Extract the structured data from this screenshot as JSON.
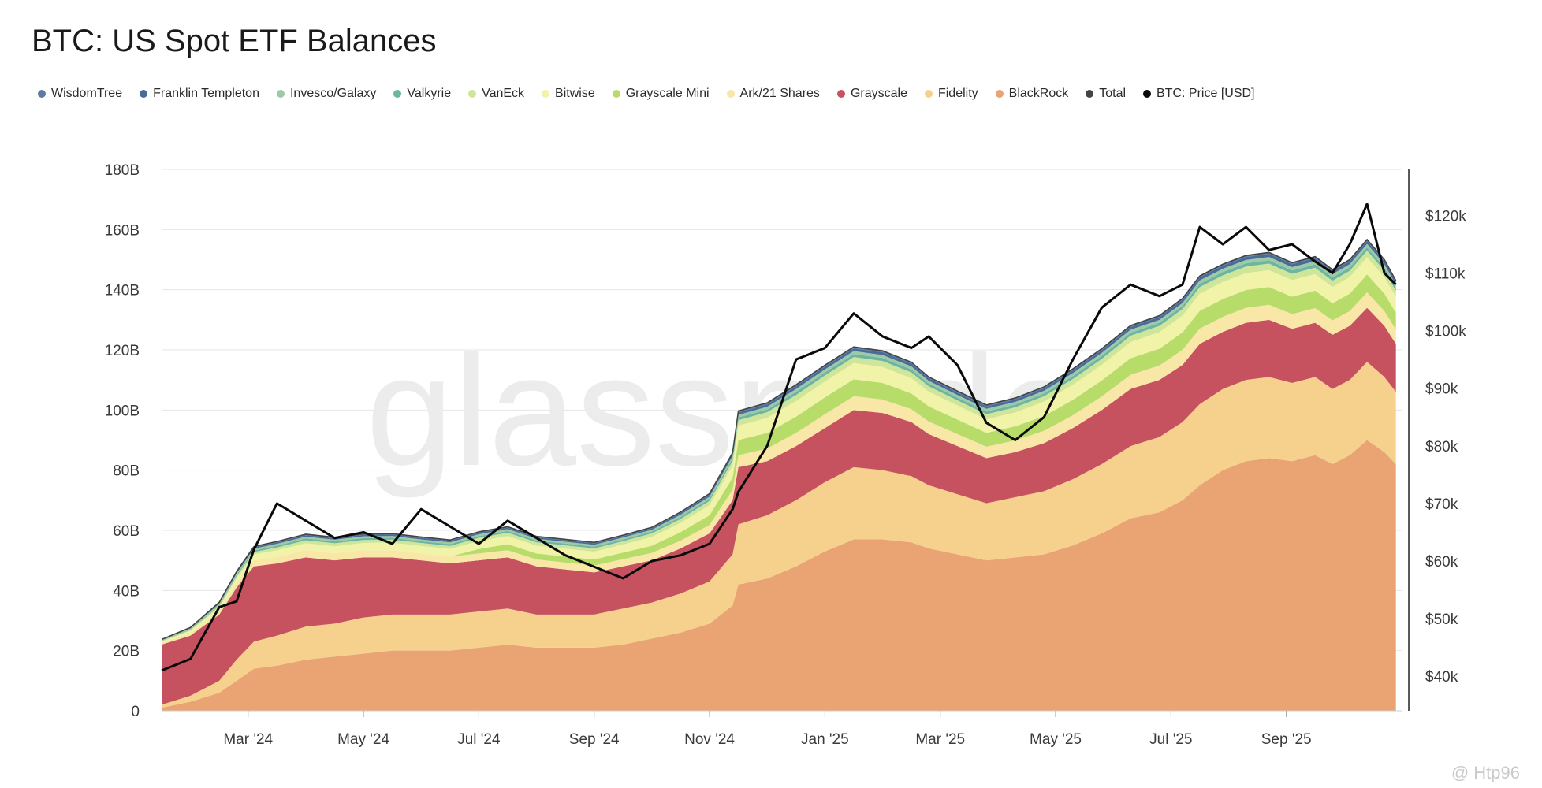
{
  "title": "BTC: US Spot ETF Balances",
  "legend": [
    {
      "label": "WisdomTree",
      "color": "#5b7aa0"
    },
    {
      "label": "Franklin Templeton",
      "color": "#4a6a98"
    },
    {
      "label": "Invesco/Galaxy",
      "color": "#9ccaa6"
    },
    {
      "label": "Valkyrie",
      "color": "#6bb5a2"
    },
    {
      "label": "VanEck",
      "color": "#cfe69a"
    },
    {
      "label": "Bitwise",
      "color": "#f0f3a8"
    },
    {
      "label": "Grayscale Mini",
      "color": "#b7dc6a"
    },
    {
      "label": "Ark/21 Shares",
      "color": "#f8e7a7"
    },
    {
      "label": "Grayscale",
      "color": "#c6525f"
    },
    {
      "label": "Fidelity",
      "color": "#f6d18e"
    },
    {
      "label": "BlackRock",
      "color": "#eaa474"
    },
    {
      "label": "Total",
      "color": "#444444"
    },
    {
      "label": "BTC: Price [USD]",
      "color": "#0a0a0a"
    }
  ],
  "watermark": "glassnode",
  "credit": "@ Htp96",
  "chart_data": {
    "type": "area",
    "stacked": true,
    "title": "BTC: US Spot ETF Balances",
    "y_left": {
      "ticks": [
        "0",
        "20B",
        "40B",
        "60B",
        "80B",
        "100B",
        "120B",
        "140B",
        "160B",
        "180B"
      ],
      "range": [
        0,
        180
      ]
    },
    "y_right": {
      "ticks": [
        "$40k",
        "$50k",
        "$60k",
        "$70k",
        "$80k",
        "$90k",
        "$100k",
        "$110k",
        "$120k"
      ],
      "range": [
        34,
        128
      ]
    },
    "x_ticks": [
      "Mar '24",
      "May '24",
      "Jul '24",
      "Sep '24",
      "Nov '24",
      "Jan '25",
      "Mar '25",
      "May '25",
      "Jul '25",
      "Sep '25"
    ],
    "x_tick_month_index": [
      1.5,
      3.5,
      5.5,
      7.5,
      9.5,
      11.5,
      13.5,
      15.5,
      17.5,
      19.5
    ],
    "x_month_range": [
      0,
      21.5
    ],
    "x": [
      0,
      0.5,
      1,
      1.3,
      1.6,
      2,
      2.5,
      3,
      3.5,
      4,
      4.5,
      5,
      5.5,
      6,
      6.5,
      7,
      7.5,
      8,
      8.5,
      9,
      9.5,
      9.9,
      10,
      10.5,
      11,
      11.5,
      12,
      12.5,
      13,
      13.3,
      13.8,
      14.3,
      14.8,
      15.3,
      15.8,
      16.3,
      16.8,
      17.3,
      17.7,
      18,
      18.4,
      18.8,
      19.2,
      19.6,
      20,
      20.3,
      20.6,
      20.9,
      21.2,
      21.4
    ],
    "series": [
      {
        "name": "BlackRock",
        "color": "#eaa474",
        "values": [
          1,
          3,
          6,
          10,
          14,
          15,
          17,
          18,
          19,
          20,
          20,
          20,
          21,
          22,
          21,
          21,
          21,
          22,
          24,
          26,
          29,
          35,
          42,
          44,
          48,
          53,
          57,
          57,
          56,
          54,
          52,
          50,
          51,
          52,
          55,
          59,
          64,
          66,
          70,
          75,
          80,
          83,
          84,
          83,
          85,
          82,
          85,
          90,
          86,
          82
        ]
      },
      {
        "name": "Fidelity",
        "color": "#f6d18e",
        "values": [
          1,
          2,
          4,
          7,
          9,
          10,
          11,
          11,
          12,
          12,
          12,
          12,
          12,
          12,
          11,
          11,
          11,
          12,
          12,
          13,
          14,
          17,
          20,
          21,
          22,
          23,
          24,
          23,
          22,
          21,
          20,
          19,
          20,
          21,
          22,
          23,
          24,
          25,
          26,
          27,
          27,
          27,
          27,
          26,
          26,
          25,
          25,
          26,
          25,
          24
        ]
      },
      {
        "name": "Grayscale",
        "color": "#c6525f",
        "values": [
          20,
          20,
          22,
          24,
          25,
          24,
          23,
          21,
          20,
          19,
          18,
          17,
          17,
          17,
          16,
          15,
          14,
          14,
          14,
          15,
          16,
          18,
          19,
          18,
          18,
          18,
          19,
          19,
          18,
          17,
          16,
          15,
          15,
          16,
          17,
          18,
          19,
          19,
          19,
          20,
          19,
          19,
          19,
          18,
          18,
          18,
          18,
          18,
          17,
          16
        ]
      },
      {
        "name": "Ark/21 Shares",
        "color": "#f8e7a7",
        "values": [
          0.5,
          0.8,
          1.2,
          1.5,
          2,
          2.2,
          2.4,
          2.4,
          2.4,
          2.4,
          2.3,
          2.3,
          2.3,
          2.4,
          2.3,
          2.3,
          2.3,
          2.4,
          2.5,
          2.6,
          2.8,
          3.5,
          4,
          4.2,
          4.4,
          4.6,
          4.6,
          4.5,
          4.3,
          4.2,
          4,
          3.8,
          3.9,
          4.1,
          4.3,
          4.5,
          4.7,
          4.8,
          5,
          5.1,
          5,
          5,
          5,
          4.9,
          4.9,
          4.8,
          4.9,
          5.1,
          4.9,
          4.7
        ]
      },
      {
        "name": "Grayscale Mini",
        "color": "#b7dc6a",
        "values": [
          0,
          0,
          0,
          0,
          0,
          0,
          0,
          0,
          0,
          0,
          0,
          0,
          1.5,
          2,
          2,
          2,
          2,
          2.2,
          2.4,
          2.8,
          3.2,
          4,
          5,
          5.2,
          5.4,
          5.6,
          5.6,
          5.5,
          5.2,
          5,
          4.8,
          4.6,
          4.7,
          4.9,
          5.1,
          5.3,
          5.5,
          5.6,
          5.8,
          5.9,
          5.9,
          5.9,
          5.9,
          5.8,
          5.8,
          5.7,
          5.8,
          6,
          5.8,
          5.6
        ]
      },
      {
        "name": "Bitwise",
        "color": "#f0f3a8",
        "values": [
          0.5,
          0.8,
          1.2,
          1.6,
          2,
          2.2,
          2.3,
          2.3,
          2.4,
          2.5,
          2.5,
          2.5,
          2.6,
          2.7,
          2.6,
          2.6,
          2.6,
          2.7,
          2.9,
          3.1,
          3.4,
          4,
          4.8,
          5,
          5.2,
          5.3,
          5.4,
          5.3,
          5.1,
          4.9,
          4.7,
          4.5,
          4.6,
          4.8,
          5,
          5.2,
          5.4,
          5.5,
          5.6,
          5.7,
          5.7,
          5.6,
          5.6,
          5.5,
          5.5,
          5.4,
          5.5,
          5.7,
          5.5,
          5.3
        ]
      },
      {
        "name": "VanEck",
        "color": "#cfe69a",
        "values": [
          0.2,
          0.3,
          0.5,
          0.7,
          0.8,
          0.9,
          1,
          1,
          1,
          1,
          1,
          1,
          1.1,
          1.1,
          1.1,
          1.1,
          1.1,
          1.1,
          1.2,
          1.3,
          1.4,
          1.6,
          1.8,
          1.9,
          2,
          2,
          2,
          2,
          1.9,
          1.8,
          1.7,
          1.7,
          1.7,
          1.8,
          1.9,
          2,
          2.1,
          2.1,
          2.2,
          2.2,
          2.2,
          2.2,
          2.2,
          2.1,
          2.1,
          2.1,
          2.1,
          2.2,
          2.1,
          2
        ]
      },
      {
        "name": "Valkyrie",
        "color": "#6bb5a2",
        "values": [
          0.1,
          0.2,
          0.3,
          0.4,
          0.5,
          0.6,
          0.6,
          0.6,
          0.6,
          0.6,
          0.6,
          0.6,
          0.6,
          0.6,
          0.6,
          0.6,
          0.6,
          0.6,
          0.6,
          0.7,
          0.7,
          0.8,
          0.9,
          0.9,
          1,
          1,
          1,
          1,
          1,
          0.9,
          0.9,
          0.9,
          0.9,
          0.9,
          1,
          1,
          1,
          1,
          1,
          1.1,
          1.1,
          1.1,
          1.1,
          1.1,
          1.1,
          1.1,
          1.1,
          1.1,
          1.1,
          1
        ]
      },
      {
        "name": "Invesco/Galaxy",
        "color": "#9ccaa6",
        "values": [
          0.2,
          0.3,
          0.4,
          0.5,
          0.6,
          0.6,
          0.6,
          0.6,
          0.6,
          0.6,
          0.6,
          0.6,
          0.6,
          0.6,
          0.6,
          0.6,
          0.6,
          0.6,
          0.6,
          0.7,
          0.7,
          0.8,
          0.9,
          0.9,
          1,
          1,
          1,
          1,
          1,
          0.9,
          0.9,
          0.9,
          0.9,
          0.9,
          1,
          1,
          1,
          1,
          1,
          1.1,
          1.1,
          1.1,
          1.1,
          1.1,
          1.1,
          1.1,
          1.1,
          1.1,
          1.1,
          1
        ]
      },
      {
        "name": "Franklin Templeton",
        "color": "#4a6a98",
        "values": [
          0.1,
          0.2,
          0.3,
          0.4,
          0.4,
          0.5,
          0.5,
          0.5,
          0.5,
          0.5,
          0.5,
          0.5,
          0.5,
          0.5,
          0.5,
          0.5,
          0.5,
          0.5,
          0.5,
          0.6,
          0.6,
          0.7,
          0.8,
          0.8,
          0.9,
          0.9,
          0.9,
          0.9,
          0.9,
          0.8,
          0.8,
          0.8,
          0.8,
          0.8,
          0.9,
          0.9,
          0.9,
          0.9,
          1,
          1,
          1,
          1,
          1,
          1,
          1,
          1,
          1,
          1,
          1,
          0.9
        ]
      },
      {
        "name": "WisdomTree",
        "color": "#5b7aa0",
        "values": [
          0.1,
          0.1,
          0.2,
          0.2,
          0.3,
          0.3,
          0.3,
          0.3,
          0.3,
          0.3,
          0.3,
          0.3,
          0.3,
          0.3,
          0.3,
          0.3,
          0.3,
          0.3,
          0.3,
          0.3,
          0.4,
          0.4,
          0.5,
          0.5,
          0.5,
          0.5,
          0.5,
          0.5,
          0.5,
          0.5,
          0.5,
          0.5,
          0.5,
          0.5,
          0.5,
          0.5,
          0.5,
          0.5,
          0.5,
          0.5,
          0.5,
          0.5,
          0.5,
          0.5,
          0.5,
          0.5,
          0.5,
          0.5,
          0.5,
          0.5
        ]
      }
    ],
    "price_series": {
      "name": "BTC: Price [USD]",
      "axis": "right",
      "color": "#0a0a0a",
      "values": [
        41,
        43,
        52,
        53,
        62,
        70,
        67,
        64,
        65,
        63,
        69,
        66,
        63,
        67,
        64,
        61,
        59,
        57,
        60,
        61,
        63,
        69,
        72,
        80,
        95,
        97,
        103,
        99,
        97,
        99,
        94,
        84,
        81,
        85,
        95,
        104,
        108,
        106,
        108,
        118,
        115,
        118,
        114,
        115,
        112,
        110,
        115,
        122,
        110,
        108
      ]
    },
    "ylabel_left": "",
    "ylabel_right": "",
    "xlabel": ""
  }
}
